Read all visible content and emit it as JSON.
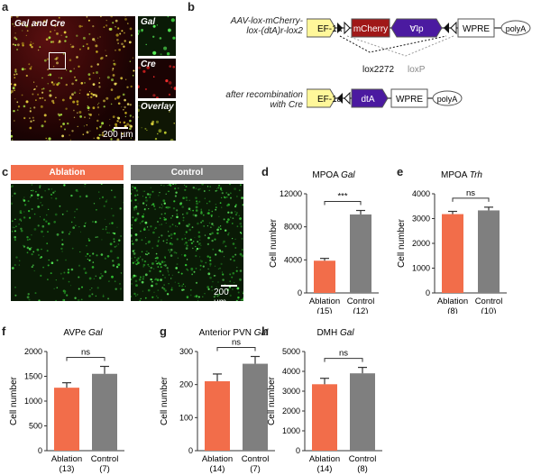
{
  "panels": {
    "a": {
      "label": "a",
      "main_title": "Gal and Cre",
      "inset_labels": [
        "Gal",
        "Cre",
        "Overlay"
      ],
      "scale_text": "200 µm"
    },
    "b": {
      "label": "b",
      "construct_label_1": "AAV-lox-mCherry-",
      "construct_label_2": "lox-(dtA)r-lox2",
      "ef1a": "EF-1a",
      "mcherry": "mCherry",
      "dta_inverted": "Ɐʇp",
      "wpre": "WPRE",
      "polya": "polyA",
      "lox2272": "lox2272",
      "loxp": "loxP",
      "after_1": "after recombination",
      "after_2": "with Cre",
      "dta": "dtA"
    },
    "c": {
      "label": "c",
      "ablation": "Ablation",
      "control": "Control",
      "scale_text": "200 µm"
    }
  },
  "colors": {
    "ablation": "#f26d4a",
    "control": "#7f7f7f",
    "ef1a": "#fff79a",
    "mcherry": "#a01818",
    "dta": "#4b1aa0"
  },
  "chart_data": [
    {
      "id": "d",
      "type": "bar",
      "title": "MPOA Gal",
      "title_plain": "MPOA ",
      "title_italic": "Gal",
      "ylabel": "Cell number",
      "ylim": [
        0,
        12000
      ],
      "yticks": [
        0,
        4000,
        8000,
        12000
      ],
      "categories": [
        "Ablation",
        "Control"
      ],
      "ns": [
        "(15)",
        "(12)"
      ],
      "values": [
        3900,
        9500
      ],
      "errors": [
        280,
        480
      ],
      "sig": "***"
    },
    {
      "id": "e",
      "type": "bar",
      "title": "MPOA Trh",
      "title_plain": "MPOA ",
      "title_italic": "Trh",
      "ylabel": "Cell number",
      "ylim": [
        0,
        4000
      ],
      "yticks": [
        0,
        1000,
        2000,
        3000,
        4000
      ],
      "categories": [
        "Ablation",
        "Control"
      ],
      "ns": [
        "(8)",
        "(10)"
      ],
      "values": [
        3180,
        3330
      ],
      "errors": [
        110,
        130
      ],
      "sig": "ns"
    },
    {
      "id": "f",
      "type": "bar",
      "title": "AVPe Gal",
      "title_plain": "AVPe ",
      "title_italic": "Gal",
      "ylabel": "Cell number",
      "ylim": [
        0,
        2000
      ],
      "yticks": [
        0,
        500,
        1000,
        1500,
        2000
      ],
      "categories": [
        "Ablation",
        "Control"
      ],
      "ns": [
        "(13)",
        "(7)"
      ],
      "values": [
        1270,
        1550
      ],
      "errors": [
        100,
        150
      ],
      "sig": "ns"
    },
    {
      "id": "g",
      "type": "bar",
      "title": "Anterior PVN Gal",
      "title_plain": "Anterior PVN ",
      "title_italic": "Gal",
      "ylabel": "Cell number",
      "ylim": [
        0,
        300
      ],
      "yticks": [
        0,
        100,
        200,
        300
      ],
      "categories": [
        "Ablation",
        "Control"
      ],
      "ns": [
        "(14)",
        "(7)"
      ],
      "values": [
        210,
        263
      ],
      "errors": [
        22,
        22
      ],
      "sig": "ns"
    },
    {
      "id": "h",
      "type": "bar",
      "title": "DMH Gal",
      "title_plain": "DMH ",
      "title_italic": "Gal",
      "ylabel": "Cell number",
      "ylim": [
        0,
        5000
      ],
      "yticks": [
        0,
        1000,
        2000,
        3000,
        4000,
        5000
      ],
      "categories": [
        "Ablation",
        "Control"
      ],
      "ns": [
        "(14)",
        "(8)"
      ],
      "values": [
        3350,
        3900
      ],
      "errors": [
        300,
        300
      ],
      "sig": "ns"
    }
  ]
}
